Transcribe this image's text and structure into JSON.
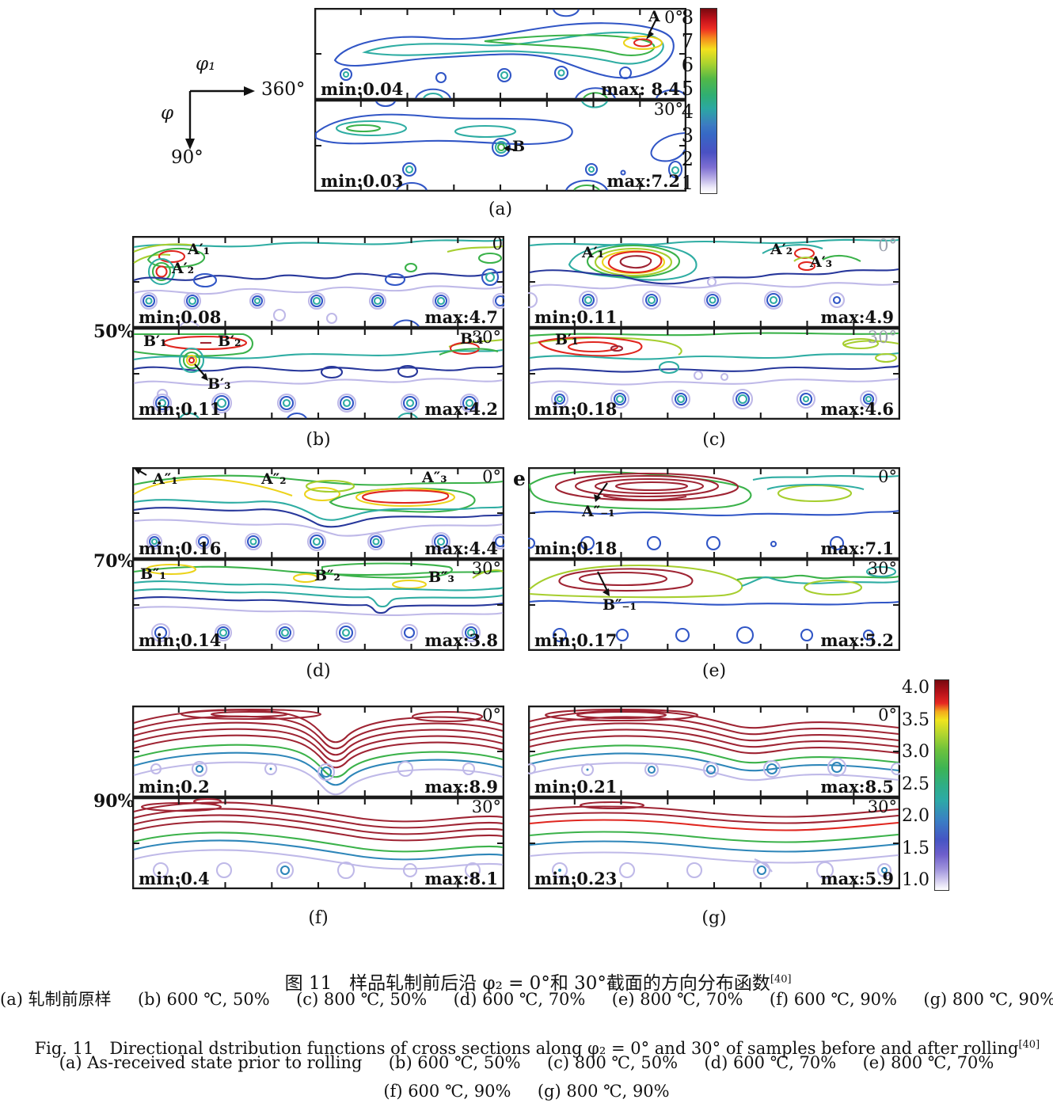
{
  "axis_legend": {
    "phi1": "φ₁",
    "phi1_max": "360°",
    "phi": "φ",
    "phi_max": "90°"
  },
  "colorbars": {
    "top": {
      "ticks": [
        "8",
        "7",
        "6",
        "5",
        "4",
        "3",
        "2",
        "1"
      ]
    },
    "bottom": {
      "ticks": [
        "4.0",
        "3.5",
        "3.0",
        "2.5",
        "2.0",
        "1.5",
        "1.0"
      ]
    }
  },
  "row_labels": {
    "row2": "50%",
    "row3": "70%",
    "row4": "90%"
  },
  "panels": {
    "a": {
      "caption": "(a)",
      "top": {
        "angle": "0°",
        "min": "min:0.04",
        "max": "max: 8.4",
        "peak1": "A"
      },
      "bottom": {
        "angle": "30°",
        "min": "min:0.03",
        "max": "max:7.2",
        "peak1": "B"
      }
    },
    "b": {
      "caption": "(b)",
      "top": {
        "angle": "0",
        "min": "min:0.08",
        "max": "max:4.7",
        "peak1": "A′₁",
        "peak2": "A′₂"
      },
      "bottom": {
        "angle": "30°",
        "min": "min:0.11",
        "max": "max:4.2",
        "peak1": "B′₁",
        "peak2": "B′₂",
        "peak3": "B′₃",
        "peak4": "B′₄"
      }
    },
    "c": {
      "caption": "(c)",
      "top": {
        "angle": "0°",
        "min": "min:0.11",
        "max": "max:4.9",
        "peak1": "A′₁",
        "peak2": "A′₂",
        "peak3": "A′₃"
      },
      "bottom": {
        "angle": "30°",
        "min": "min:0.18",
        "max": "max:4.6",
        "peak1": "B′₁"
      }
    },
    "d": {
      "caption": "(d)",
      "top": {
        "angle": "0°",
        "min": "min:0.16",
        "max": "max:4.4",
        "peak1": "A″₁",
        "peak2": "A″₂",
        "peak3": "A″₃"
      },
      "bottom": {
        "angle": "30°",
        "min": "min:0.14",
        "max": "max:3.8",
        "peak1": "B″₁",
        "peak2": "B″₂",
        "peak3": "B″₃"
      }
    },
    "e": {
      "caption": "(e)",
      "side_label": "e",
      "top": {
        "angle": "0°",
        "min": "min:0.18",
        "max": "max:7.1",
        "peak1": "A″₋₁"
      },
      "bottom": {
        "angle": "30°",
        "min": "min:0.17",
        "max": "max:5.2",
        "peak1": "B″₋₁"
      }
    },
    "f": {
      "caption": "(f)",
      "top": {
        "angle": "0°",
        "min": "min:0.2",
        "max": "max:8.9"
      },
      "bottom": {
        "angle": "30°",
        "min": "min:0.4",
        "max": "max:8.1"
      }
    },
    "g": {
      "caption": "(g)",
      "top": {
        "angle": "0°",
        "min": "min:0.21",
        "max": "max:8.5"
      },
      "bottom": {
        "angle": "30°",
        "min": "min:0.23",
        "max": "max:5.9"
      }
    }
  },
  "captions": {
    "zh_title": "图 11   样品轧制前后沿 φ₂ = 0°和 30°截面的方向分布函数",
    "ref": "[40]",
    "zh_sub": "(a) 轧制前原样     (b) 600 ℃, 50%     (c) 800 ℃, 50%     (d) 600 ℃, 70%     (e) 800 ℃, 70%     (f) 600 ℃, 90%     (g) 800 ℃, 90%",
    "en_title": "Fig. 11   Directional dstribution functions of cross sections along φ₂ = 0° and 30° of samples before and after rolling",
    "en_sub1": "(a) As-received state prior to rolling     (b) 600 ℃, 50%     (c) 800 ℃, 50%     (d) 600 ℃, 70%     (e) 800 ℃, 70%",
    "en_sub2": "(f) 600 ℃, 90%     (g) 800 ℃, 90%"
  },
  "palette": {
    "contour_levels": [
      "#bfb9e8",
      "#3156c6",
      "#27379b",
      "#2fada3",
      "#3bb24a",
      "#a6ce2e",
      "#ecd31b",
      "#f59b1e",
      "#e0261f",
      "#9f2433"
    ],
    "colorbar_max_color": "#77090f",
    "colorbar_min_color": "#ffffff"
  }
}
